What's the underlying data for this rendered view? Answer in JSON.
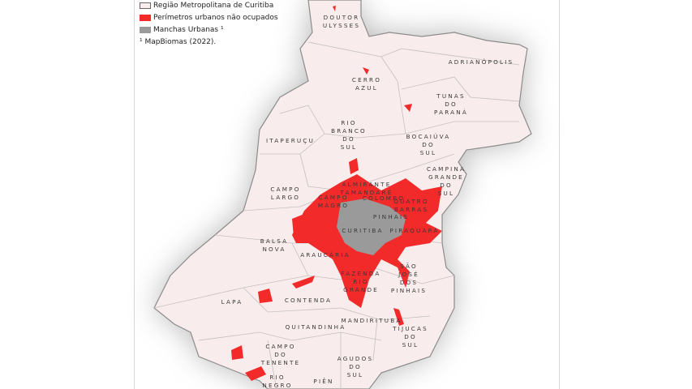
{
  "legend": {
    "items": [
      {
        "label": "Região Metropolitana de Curitiba",
        "color": "#fbeeee"
      },
      {
        "label": "Perímetros urbanos não ocupados",
        "color": "#f22a2a"
      },
      {
        "label": "Manchas Urbanas ¹",
        "color": "#9a9a9a"
      }
    ],
    "source_note": "¹ MapBiomas (2022)."
  },
  "colors": {
    "region_fill": "#f9ecec",
    "boundary": "#8c8c8c",
    "unoccupied_perimeter": "#f22a2a",
    "urban_patch": "#9a9a9a"
  },
  "municipalities": [
    "DOUTOR|ULYSSES",
    "ADRIANÓPOLIS",
    "CERRO|AZUL",
    "TUNAS|DO|PARANÁ",
    "RIO|BRANCO|DO|SUL",
    "ITAPERUÇU",
    "BOCAIÚVA|DO|SUL",
    "CAMPINA|GRANDE|DO|SUL",
    "CAMPO|LARGO",
    "ALMIRANTE|TAMANDARÉ",
    "CAMPO|MAGRO",
    "COLOMBO",
    "QUATRO|BARRAS",
    "PINHAIS",
    "CURITIBA",
    "PIRAQUARA",
    "BALSA|NOVA",
    "ARAUCÁRIA",
    "FAZENDA|RIO|GRANDE",
    "SÃO|JOSÉ|DOS|PINHAIS",
    "LAPA",
    "CONTENDA",
    "MANDIRITUBA",
    "QUITANDINHA",
    "TIJUCAS|DO|SUL",
    "CAMPO|DO|TENENTE",
    "AGUDOS|DO|SUL",
    "RIO|NEGRO",
    "PIÊN"
  ]
}
